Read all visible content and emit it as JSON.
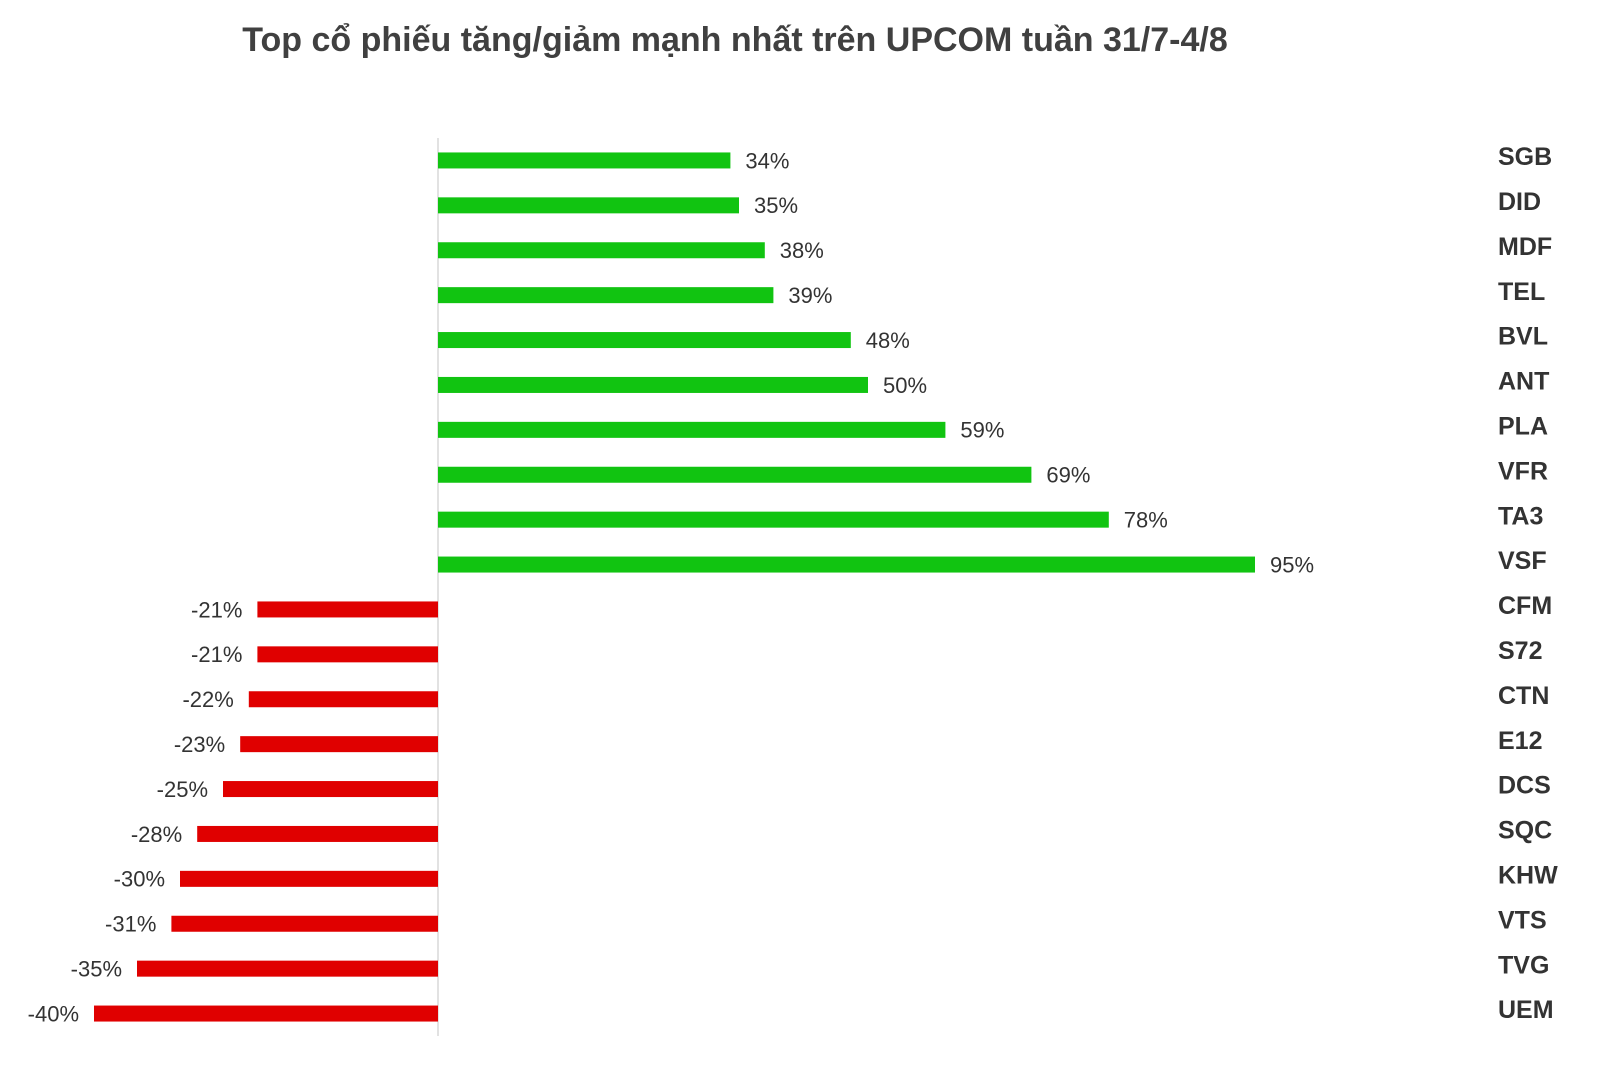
{
  "chart_data": {
    "type": "bar",
    "orientation": "horizontal",
    "title": "Top cổ phiếu tăng/giảm mạnh nhất trên UPCOM tuần 31/7-4/8",
    "categories": [
      "SGB",
      "DID",
      "MDF",
      "TEL",
      "BVL",
      "ANT",
      "PLA",
      "VFR",
      "TA3",
      "VSF",
      "CFM",
      "S72",
      "CTN",
      "E12",
      "DCS",
      "SQC",
      "KHW",
      "VTS",
      "TVG",
      "UEM"
    ],
    "values": [
      34,
      35,
      38,
      39,
      48,
      50,
      59,
      69,
      78,
      95,
      -21,
      -21,
      -22,
      -23,
      -25,
      -28,
      -30,
      -31,
      -35,
      -40
    ],
    "value_labels": [
      "34%",
      "35%",
      "38%",
      "39%",
      "48%",
      "50%",
      "59%",
      "69%",
      "78%",
      "95%",
      "-21%",
      "-21%",
      "-22%",
      "-23%",
      "-25%",
      "-28%",
      "-30%",
      "-31%",
      "-35%",
      "-40%"
    ],
    "positive_color": "#11c411",
    "negative_color": "#e00000",
    "xlim": [
      -50,
      130
    ]
  }
}
